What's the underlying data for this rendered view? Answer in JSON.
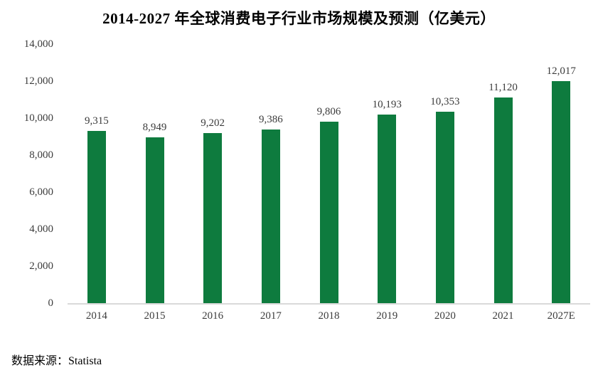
{
  "chart_data": {
    "type": "bar",
    "title": "2014-2027 年全球消费电子行业市场规模及预测（亿美元）",
    "categories": [
      "2014",
      "2015",
      "2016",
      "2017",
      "2018",
      "2019",
      "2020",
      "2021",
      "2027E"
    ],
    "values": [
      9315,
      8949,
      9202,
      9386,
      9806,
      10193,
      10353,
      11120,
      12017
    ],
    "value_labels": [
      "9,315",
      "8,949",
      "9,202",
      "9,386",
      "9,806",
      "10,193",
      "10,353",
      "11,120",
      "12,017"
    ],
    "xlabel": "",
    "ylabel": "",
    "ylim": [
      0,
      14000
    ],
    "ytick_step": 2000,
    "yticks": [
      "0",
      "2,000",
      "4,000",
      "6,000",
      "8,000",
      "10,000",
      "12,000",
      "14,000"
    ],
    "grid": false,
    "legend_position": "none",
    "bar_color": "#0e7b3e",
    "label_color": "#3b3b3b",
    "axis_line_color": "#d9d9d9",
    "source_note": "数据来源：Statista"
  }
}
